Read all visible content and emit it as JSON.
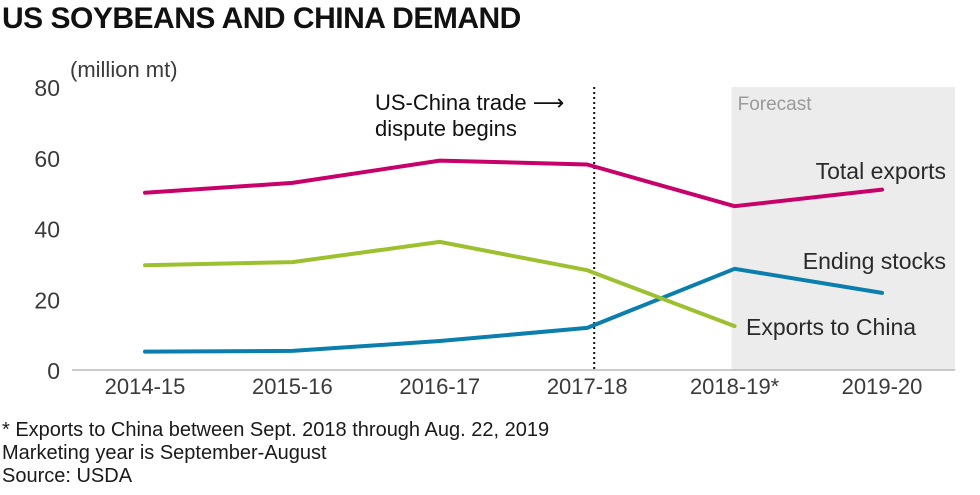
{
  "title": "US SOYBEANS AND CHINA DEMAND",
  "notes": [
    "* Exports to China between Sept. 2018 through Aug. 22, 2019",
    "Marketing year is September-August",
    "Source: USDA"
  ],
  "chart_data": {
    "type": "line",
    "title": "US SOYBEANS AND CHINA DEMAND",
    "ylabel": "(million mt)",
    "xlabel": "",
    "categories": [
      "2014-15",
      "2015-16",
      "2016-17",
      "2017-18",
      "2018-19*",
      "2019-20"
    ],
    "ylim": [
      0,
      80
    ],
    "yticks": [
      0,
      20,
      40,
      60,
      80
    ],
    "grid": false,
    "forecast_label": "Forecast",
    "forecast_from": "2018-19*",
    "annotation": {
      "text": [
        "US-China trade ⟶",
        "dispute begins"
      ],
      "at": "2017-18"
    },
    "series": [
      {
        "name": "Total exports",
        "color": "#c8006a",
        "values": [
          50.1,
          52.9,
          59.2,
          58.1,
          46.3,
          51.0
        ]
      },
      {
        "name": "Ending stocks",
        "color": "#0a7fae",
        "values": [
          5.2,
          5.4,
          8.2,
          11.9,
          28.6,
          21.8
        ]
      },
      {
        "name": "Exports to China",
        "color": "#9dc12e",
        "values": [
          29.6,
          30.5,
          36.2,
          28.2,
          12.4,
          null
        ]
      }
    ]
  }
}
